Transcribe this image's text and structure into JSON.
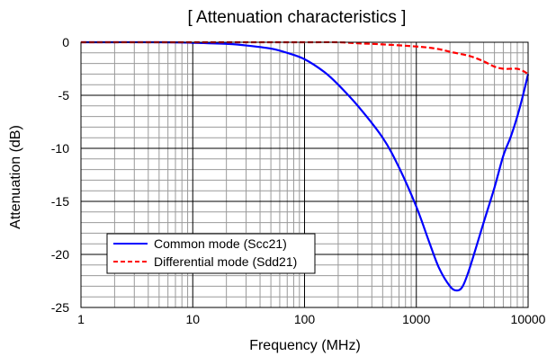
{
  "chart_data": {
    "type": "line",
    "title": "[ Attenuation characteristics ]",
    "xlabel": "Frequency (MHz)",
    "ylabel": "Attenuation (dB)",
    "xscale": "log",
    "xlim": [
      1,
      10000
    ],
    "ylim": [
      -25,
      0
    ],
    "xticks": [
      1,
      10,
      100,
      1000,
      10000
    ],
    "xtick_labels": [
      "1",
      "10",
      "100",
      "1000",
      "10000"
    ],
    "yticks": [
      0,
      -5,
      -10,
      -15,
      -20,
      -25
    ],
    "ytick_labels": [
      "0",
      "-5",
      "-10",
      "-15",
      "-20",
      "-25"
    ],
    "grid": true,
    "legend_position": "bottom-left",
    "series": [
      {
        "name": "Common mode (Scc21)",
        "color": "#0000ff",
        "style": "solid",
        "points": [
          [
            1,
            0
          ],
          [
            5,
            0
          ],
          [
            10,
            -0.05
          ],
          [
            20,
            -0.15
          ],
          [
            30,
            -0.3
          ],
          [
            50,
            -0.6
          ],
          [
            70,
            -1.0
          ],
          [
            100,
            -1.6
          ],
          [
            150,
            -2.8
          ],
          [
            200,
            -4.0
          ],
          [
            300,
            -6.0
          ],
          [
            500,
            -9.0
          ],
          [
            700,
            -11.8
          ],
          [
            1000,
            -15.5
          ],
          [
            1300,
            -18.8
          ],
          [
            1600,
            -21.3
          ],
          [
            2000,
            -23.0
          ],
          [
            2300,
            -23.4
          ],
          [
            2600,
            -23.0
          ],
          [
            3000,
            -21.3
          ],
          [
            4000,
            -17.0
          ],
          [
            5000,
            -13.7
          ],
          [
            6000,
            -10.7
          ],
          [
            7000,
            -8.9
          ],
          [
            8000,
            -7.0
          ],
          [
            9000,
            -5.0
          ],
          [
            10000,
            -3.0
          ]
        ]
      },
      {
        "name": "Differential mode (Sdd21)",
        "color": "#ff0000",
        "style": "dashed",
        "points": [
          [
            1,
            0
          ],
          [
            10,
            0
          ],
          [
            100,
            0
          ],
          [
            200,
            0
          ],
          [
            300,
            -0.1
          ],
          [
            500,
            -0.2
          ],
          [
            1000,
            -0.4
          ],
          [
            1500,
            -0.6
          ],
          [
            2000,
            -0.9
          ],
          [
            3000,
            -1.3
          ],
          [
            4000,
            -1.8
          ],
          [
            5000,
            -2.3
          ],
          [
            6000,
            -2.5
          ],
          [
            7000,
            -2.5
          ],
          [
            8000,
            -2.5
          ],
          [
            9000,
            -2.7
          ],
          [
            10000,
            -3.0
          ]
        ]
      }
    ]
  }
}
